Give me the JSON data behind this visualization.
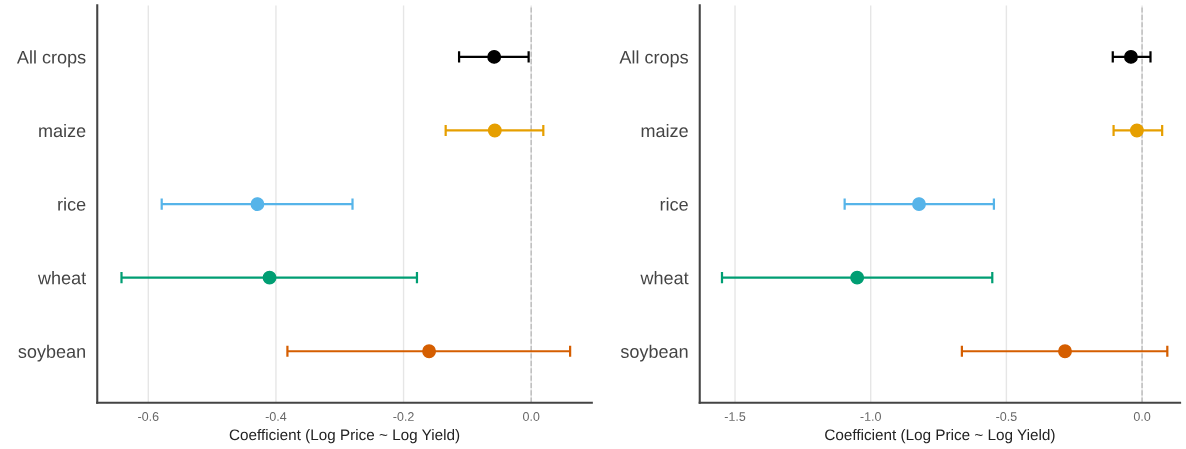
{
  "chart_data": [
    {
      "type": "scatter",
      "orientation": "horizontal",
      "xlabel": "Coefficient (Log Price ~ Log Yield)",
      "categories": [
        "All crops",
        "maize",
        "rice",
        "wheat",
        "soybean"
      ],
      "values": [
        -0.058,
        -0.057,
        -0.429,
        -0.41,
        -0.16
      ],
      "errors": [
        [
          -0.113,
          -0.004
        ],
        [
          -0.134,
          0.019
        ],
        [
          -0.579,
          -0.28
        ],
        [
          -0.642,
          -0.179
        ],
        [
          -0.382,
          0.061
        ]
      ],
      "colors": [
        "#000000",
        "#e69f00",
        "#56b4e9",
        "#009e73",
        "#d55e00"
      ],
      "xlim": [
        -0.68,
        0.095
      ],
      "xticks": [
        {
          "value": -0.6,
          "label": "-0.6"
        },
        {
          "value": -0.4,
          "label": "-0.4"
        },
        {
          "value": -0.2,
          "label": "-0.2"
        },
        {
          "value": 0.0,
          "label": "0.0"
        }
      ],
      "ref_lines": [
        {
          "axis": "x",
          "value": 0,
          "color": "#bbbbbb",
          "line_style": "dashed"
        }
      ],
      "grid": "x",
      "marker": "circle"
    },
    {
      "type": "scatter",
      "orientation": "horizontal",
      "xlabel": "Coefficient (Log Price ~ Log Yield)",
      "categories": [
        "All crops",
        "maize",
        "rice",
        "wheat",
        "soybean"
      ],
      "values": [
        -0.041,
        -0.019,
        -0.822,
        -1.05,
        -0.284
      ],
      "errors": [
        [
          -0.108,
          0.031
        ],
        [
          -0.105,
          0.074
        ],
        [
          -1.096,
          -0.546
        ],
        [
          -1.548,
          -0.552
        ],
        [
          -0.664,
          0.093
        ]
      ],
      "colors": [
        "#000000",
        "#e69f00",
        "#56b4e9",
        "#009e73",
        "#d55e00"
      ],
      "xlim": [
        -1.63,
        0.14
      ],
      "xticks": [
        {
          "value": -1.5,
          "label": "-1.5"
        },
        {
          "value": -1.0,
          "label": "-1.0"
        },
        {
          "value": -0.5,
          "label": "-0.5"
        },
        {
          "value": 0.0,
          "label": "0.0"
        }
      ],
      "ref_lines": [
        {
          "axis": "x",
          "value": 0,
          "color": "#bbbbbb",
          "line_style": "dashed"
        }
      ],
      "grid": "x",
      "marker": "circle"
    }
  ]
}
